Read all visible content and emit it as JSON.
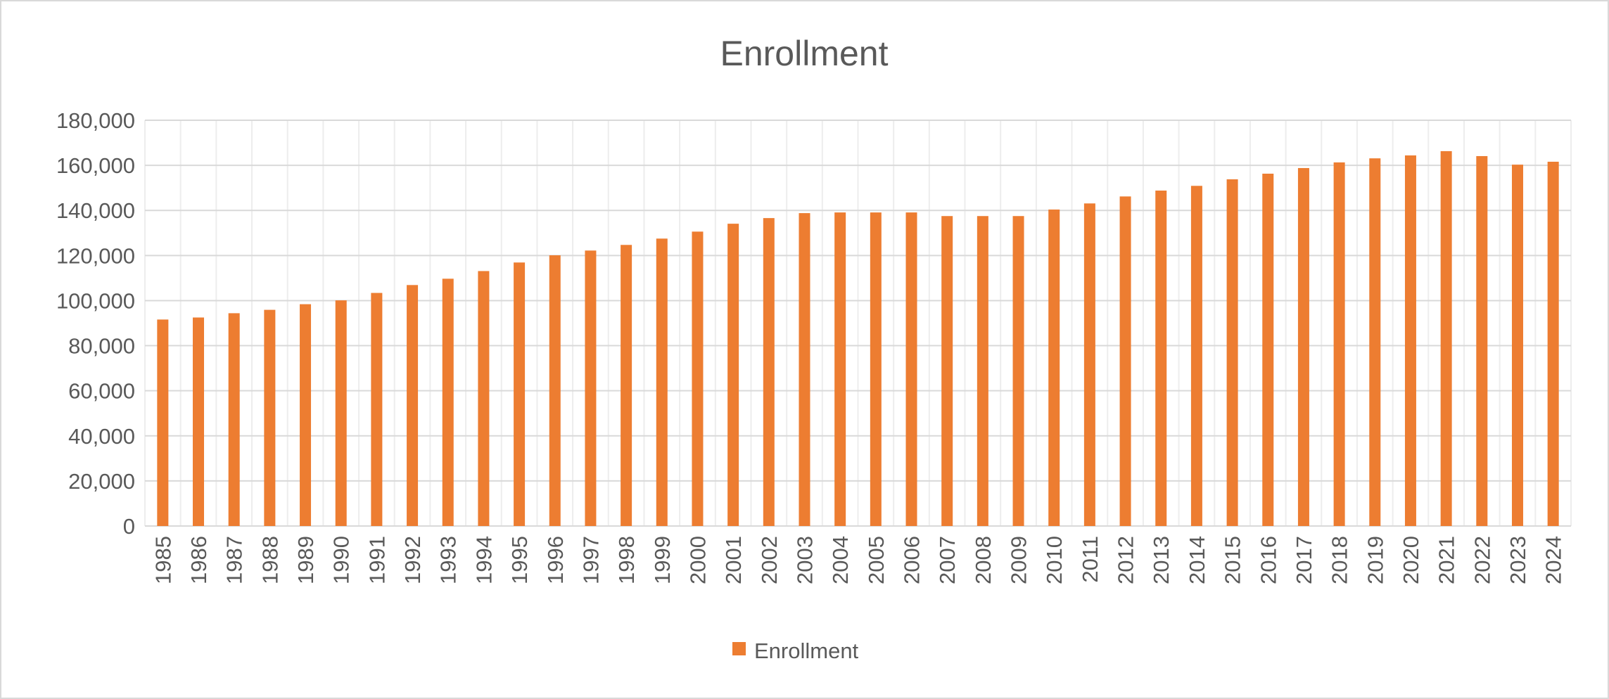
{
  "chart_data": {
    "type": "bar",
    "title": "Enrollment",
    "xlabel": "",
    "ylabel": "",
    "ylim": [
      0,
      180000
    ],
    "y_ticks": [
      0,
      20000,
      40000,
      60000,
      80000,
      100000,
      120000,
      140000,
      160000,
      180000
    ],
    "y_tick_labels": [
      "0",
      "20,000",
      "40,000",
      "60,000",
      "80,000",
      "100,000",
      "120,000",
      "140,000",
      "160,000",
      "180,000"
    ],
    "grid": true,
    "legend_position": "bottom",
    "categories": [
      "1985",
      "1986",
      "1987",
      "1988",
      "1989",
      "1990",
      "1991",
      "1992",
      "1993",
      "1994",
      "1995",
      "1996",
      "1997",
      "1998",
      "1999",
      "2000",
      "2001",
      "2002",
      "2003",
      "2004",
      "2005",
      "2006",
      "2007",
      "2008",
      "2009",
      "2010",
      "2011",
      "2012",
      "2013",
      "2014",
      "2015",
      "2016",
      "2017",
      "2018",
      "2019",
      "2020",
      "2021",
      "2022",
      "2023",
      "2024"
    ],
    "series": [
      {
        "name": "Enrollment",
        "color": "#ED7D31",
        "values": [
          91600,
          92500,
          94400,
          95900,
          98400,
          100100,
          103400,
          106900,
          109700,
          113100,
          116900,
          120100,
          122200,
          124700,
          127500,
          130600,
          134100,
          136600,
          138800,
          139100,
          139100,
          139100,
          137500,
          137500,
          137500,
          140400,
          143100,
          146200,
          148800,
          150900,
          153800,
          156300,
          158800,
          161300,
          163100,
          164400,
          166300,
          164100,
          160300,
          161600
        ]
      }
    ]
  }
}
